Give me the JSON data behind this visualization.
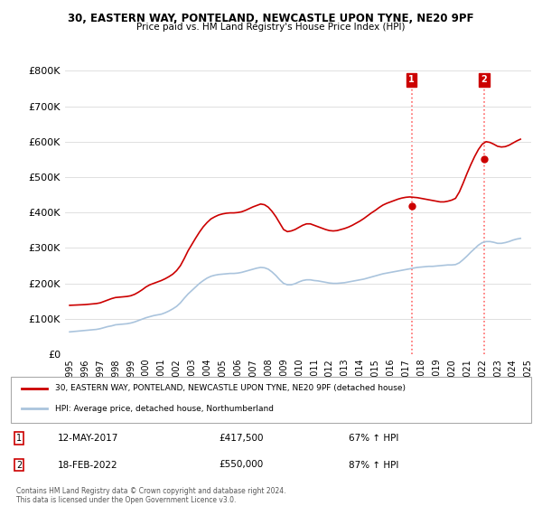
{
  "title1": "30, EASTERN WAY, PONTELAND, NEWCASTLE UPON TYNE, NE20 9PF",
  "title2": "Price paid vs. HM Land Registry's House Price Index (HPI)",
  "ylabel": "",
  "xlabel": "",
  "ylim": [
    0,
    800000
  ],
  "yticks": [
    0,
    100000,
    200000,
    300000,
    400000,
    500000,
    600000,
    700000,
    800000
  ],
  "ytick_labels": [
    "£0",
    "£100K",
    "£200K",
    "£300K",
    "£400K",
    "£500K",
    "£600K",
    "£700K",
    "£800K"
  ],
  "hpi_color": "#aac4dd",
  "price_color": "#cc0000",
  "marker_color": "#cc0000",
  "vline_color": "#ff6666",
  "vline_style": ":",
  "annotation_box_color": "#cc0000",
  "annotation_text_color": "#cc0000",
  "bg_color": "#ffffff",
  "grid_color": "#e0e0e0",
  "legend_line1": "30, EASTERN WAY, PONTELAND, NEWCASTLE UPON TYNE, NE20 9PF (detached house)",
  "legend_line2": "HPI: Average price, detached house, Northumberland",
  "transaction1_label": "1",
  "transaction1_date": "12-MAY-2017",
  "transaction1_price": "£417,500",
  "transaction1_hpi": "67% ↑ HPI",
  "transaction2_label": "2",
  "transaction2_date": "18-FEB-2022",
  "transaction2_price": "£550,000",
  "transaction2_hpi": "87% ↑ HPI",
  "footnote1": "Contains HM Land Registry data © Crown copyright and database right 2024.",
  "footnote2": "This data is licensed under the Open Government Licence v3.0.",
  "hpi_data": {
    "years": [
      1995.0,
      1995.25,
      1995.5,
      1995.75,
      1996.0,
      1996.25,
      1996.5,
      1996.75,
      1997.0,
      1997.25,
      1997.5,
      1997.75,
      1998.0,
      1998.25,
      1998.5,
      1998.75,
      1999.0,
      1999.25,
      1999.5,
      1999.75,
      2000.0,
      2000.25,
      2000.5,
      2000.75,
      2001.0,
      2001.25,
      2001.5,
      2001.75,
      2002.0,
      2002.25,
      2002.5,
      2002.75,
      2003.0,
      2003.25,
      2003.5,
      2003.75,
      2004.0,
      2004.25,
      2004.5,
      2004.75,
      2005.0,
      2005.25,
      2005.5,
      2005.75,
      2006.0,
      2006.25,
      2006.5,
      2006.75,
      2007.0,
      2007.25,
      2007.5,
      2007.75,
      2008.0,
      2008.25,
      2008.5,
      2008.75,
      2009.0,
      2009.25,
      2009.5,
      2009.75,
      2010.0,
      2010.25,
      2010.5,
      2010.75,
      2011.0,
      2011.25,
      2011.5,
      2011.75,
      2012.0,
      2012.25,
      2012.5,
      2012.75,
      2013.0,
      2013.25,
      2013.5,
      2013.75,
      2014.0,
      2014.25,
      2014.5,
      2014.75,
      2015.0,
      2015.25,
      2015.5,
      2015.75,
      2016.0,
      2016.25,
      2016.5,
      2016.75,
      2017.0,
      2017.25,
      2017.5,
      2017.75,
      2018.0,
      2018.25,
      2018.5,
      2018.75,
      2019.0,
      2019.25,
      2019.5,
      2019.75,
      2020.0,
      2020.25,
      2020.5,
      2020.75,
      2021.0,
      2021.25,
      2021.5,
      2021.75,
      2022.0,
      2022.25,
      2022.5,
      2022.75,
      2023.0,
      2023.25,
      2023.5,
      2023.75,
      2024.0,
      2024.25,
      2024.5
    ],
    "values": [
      63000,
      64000,
      65000,
      66000,
      67000,
      68000,
      69000,
      70000,
      72000,
      75000,
      78000,
      80000,
      83000,
      84000,
      85000,
      86000,
      88000,
      91000,
      95000,
      99000,
      103000,
      106000,
      109000,
      111000,
      113000,
      117000,
      122000,
      128000,
      135000,
      145000,
      158000,
      170000,
      180000,
      190000,
      200000,
      208000,
      215000,
      220000,
      223000,
      225000,
      226000,
      227000,
      228000,
      228000,
      229000,
      231000,
      234000,
      237000,
      240000,
      243000,
      245000,
      244000,
      240000,
      232000,
      222000,
      210000,
      200000,
      196000,
      196000,
      199000,
      204000,
      208000,
      210000,
      210000,
      208000,
      207000,
      205000,
      203000,
      201000,
      200000,
      200000,
      201000,
      202000,
      204000,
      206000,
      208000,
      210000,
      212000,
      215000,
      218000,
      221000,
      224000,
      227000,
      229000,
      231000,
      233000,
      235000,
      237000,
      239000,
      241000,
      243000,
      245000,
      246000,
      247000,
      248000,
      248000,
      249000,
      250000,
      251000,
      252000,
      252000,
      253000,
      258000,
      267000,
      277000,
      288000,
      298000,
      308000,
      315000,
      318000,
      318000,
      316000,
      313000,
      313000,
      315000,
      318000,
      322000,
      325000,
      327000
    ]
  },
  "price_data": {
    "years": [
      1995.0,
      1995.25,
      1995.5,
      1995.75,
      1996.0,
      1996.25,
      1996.5,
      1996.75,
      1997.0,
      1997.25,
      1997.5,
      1997.75,
      1998.0,
      1998.25,
      1998.5,
      1998.75,
      1999.0,
      1999.25,
      1999.5,
      1999.75,
      2000.0,
      2000.25,
      2000.5,
      2000.75,
      2001.0,
      2001.25,
      2001.5,
      2001.75,
      2002.0,
      2002.25,
      2002.5,
      2002.75,
      2003.0,
      2003.25,
      2003.5,
      2003.75,
      2004.0,
      2004.25,
      2004.5,
      2004.75,
      2005.0,
      2005.25,
      2005.5,
      2005.75,
      2006.0,
      2006.25,
      2006.5,
      2006.75,
      2007.0,
      2007.25,
      2007.5,
      2007.75,
      2008.0,
      2008.25,
      2008.5,
      2008.75,
      2009.0,
      2009.25,
      2009.5,
      2009.75,
      2010.0,
      2010.25,
      2010.5,
      2010.75,
      2011.0,
      2011.25,
      2011.5,
      2011.75,
      2012.0,
      2012.25,
      2012.5,
      2012.75,
      2013.0,
      2013.25,
      2013.5,
      2013.75,
      2014.0,
      2014.25,
      2014.5,
      2014.75,
      2015.0,
      2015.25,
      2015.5,
      2015.75,
      2016.0,
      2016.25,
      2016.5,
      2016.75,
      2017.0,
      2017.25,
      2017.5,
      2017.75,
      2018.0,
      2018.25,
      2018.5,
      2018.75,
      2019.0,
      2019.25,
      2019.5,
      2019.75,
      2020.0,
      2020.25,
      2020.5,
      2020.75,
      2021.0,
      2021.25,
      2021.5,
      2021.75,
      2022.0,
      2022.25,
      2022.5,
      2022.75,
      2023.0,
      2023.25,
      2023.5,
      2023.75,
      2024.0,
      2024.25,
      2024.5
    ],
    "values": [
      138000,
      138500,
      139000,
      139500,
      140000,
      141000,
      142000,
      143000,
      145000,
      149000,
      153000,
      157000,
      160000,
      161000,
      162000,
      163000,
      165000,
      169000,
      175000,
      182000,
      190000,
      196000,
      200000,
      204000,
      208000,
      213000,
      219000,
      226000,
      236000,
      250000,
      270000,
      292000,
      310000,
      328000,
      345000,
      360000,
      372000,
      382000,
      388000,
      393000,
      396000,
      398000,
      399000,
      399000,
      400000,
      402000,
      406000,
      411000,
      416000,
      420000,
      424000,
      422000,
      415000,
      403000,
      388000,
      370000,
      352000,
      346000,
      348000,
      352000,
      358000,
      364000,
      368000,
      368000,
      364000,
      360000,
      356000,
      352000,
      349000,
      348000,
      349000,
      352000,
      355000,
      359000,
      364000,
      370000,
      376000,
      383000,
      391000,
      399000,
      406000,
      414000,
      421000,
      426000,
      430000,
      434000,
      438000,
      441000,
      443000,
      444000,
      443000,
      442000,
      440000,
      438000,
      436000,
      434000,
      432000,
      430000,
      430000,
      432000,
      435000,
      440000,
      458000,
      483000,
      510000,
      535000,
      558000,
      578000,
      593000,
      600000,
      598000,
      593000,
      587000,
      585000,
      586000,
      590000,
      596000,
      602000,
      607000
    ]
  },
  "transaction1_year": 2017.37,
  "transaction1_value": 417500,
  "transaction2_year": 2022.12,
  "transaction2_value": 550000,
  "xlim_left": 1994.7,
  "xlim_right": 2025.2,
  "xticks": [
    1995,
    1996,
    1997,
    1998,
    1999,
    2000,
    2001,
    2002,
    2003,
    2004,
    2005,
    2006,
    2007,
    2008,
    2009,
    2010,
    2011,
    2012,
    2013,
    2014,
    2015,
    2016,
    2017,
    2018,
    2019,
    2020,
    2021,
    2022,
    2023,
    2024,
    2025
  ]
}
